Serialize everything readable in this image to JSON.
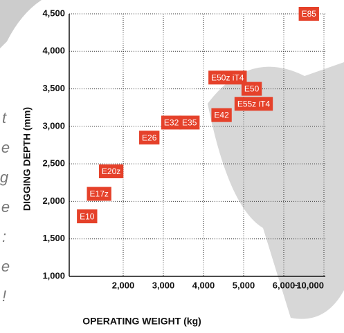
{
  "chart_data": {
    "type": "labeled-scatter",
    "x_label": "OPERATING WEIGHT (kg)",
    "y_label": "DIGGING DEPTH (mm)",
    "xlim": [
      700,
      10000
    ],
    "ylim": [
      1000,
      4500
    ],
    "xticks": [
      {
        "value": 2000,
        "label": "2,000"
      },
      {
        "value": 3000,
        "label": "3,000"
      },
      {
        "value": 4000,
        "label": "4,000"
      },
      {
        "value": 5000,
        "label": "5,000"
      },
      {
        "value": 6000,
        "label": "6,000"
      },
      {
        "value": 10000,
        "label": "10,000"
      }
    ],
    "x_break_label": "~",
    "yticks": [
      {
        "value": 1000,
        "label": "1,000"
      },
      {
        "value": 1500,
        "label": "1,500"
      },
      {
        "value": 2000,
        "label": "2,000"
      },
      {
        "value": 2500,
        "label": "2,500"
      },
      {
        "value": 3000,
        "label": "3,000"
      },
      {
        "value": 3500,
        "label": "3,500"
      },
      {
        "value": 4000,
        "label": "4,000"
      },
      {
        "value": 4500,
        "label": "4,500"
      }
    ],
    "grid": true,
    "color": "#e5412a",
    "labels": [
      "E10",
      "E17z",
      "E20z",
      "E26",
      "E32",
      "E35",
      "E42",
      "E50z iT4",
      "E50",
      "E55z iT4",
      "E85"
    ],
    "x": [
      1100,
      1400,
      1700,
      2650,
      3200,
      3650,
      4450,
      4600,
      5200,
      5250,
      8500
    ],
    "values": [
      1800,
      2100,
      2400,
      2850,
      3050,
      3050,
      3150,
      3650,
      3500,
      3300,
      4500
    ]
  },
  "side_text": [
    "t",
    "e",
    "g",
    "e",
    ":",
    "e",
    "!"
  ]
}
